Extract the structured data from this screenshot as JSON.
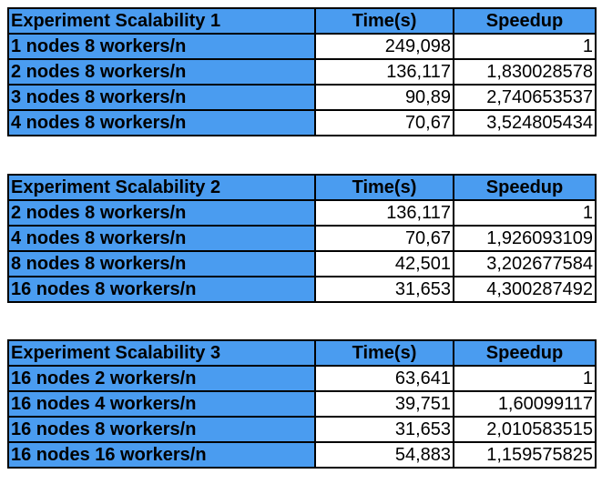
{
  "tables": [
    {
      "title": "Experiment Scalability 1",
      "col_time": "Time(s)",
      "col_speedup": "Speedup",
      "rows": [
        {
          "label": "1 nodes 8 workers/n",
          "time": "249,098",
          "speedup": "1"
        },
        {
          "label": "2 nodes 8 workers/n",
          "time": "136,117",
          "speedup": "1,830028578"
        },
        {
          "label": "3 nodes 8 workers/n",
          "time": "90,89",
          "speedup": "2,740653537"
        },
        {
          "label": "4 nodes 8 workers/n",
          "time": "70,67",
          "speedup": "3,524805434"
        }
      ]
    },
    {
      "title": "Experiment Scalability 2",
      "col_time": "Time(s)",
      "col_speedup": "Speedup",
      "rows": [
        {
          "label": "2 nodes 8 workers/n",
          "time": "136,117",
          "speedup": "1"
        },
        {
          "label": "4 nodes 8 workers/n",
          "time": "70,67",
          "speedup": "1,926093109"
        },
        {
          "label": "8 nodes 8 workers/n",
          "time": "42,501",
          "speedup": "3,202677584"
        },
        {
          "label": "16 nodes 8 workers/n",
          "time": "31,653",
          "speedup": "4,300287492"
        }
      ]
    },
    {
      "title": "Experiment Scalability 3",
      "col_time": "Time(s)",
      "col_speedup": "Speedup",
      "rows": [
        {
          "label": "16 nodes 2 workers/n",
          "time": "63,641",
          "speedup": "1"
        },
        {
          "label": "16 nodes 4 workers/n",
          "time": "39,751",
          "speedup": "1,60099117"
        },
        {
          "label": "16 nodes 8 workers/n",
          "time": "31,653",
          "speedup": "2,010583515"
        },
        {
          "label": "16 nodes 16 workers/n",
          "time": "54,883",
          "speedup": "1,159575825"
        }
      ]
    }
  ],
  "colors": {
    "header_fill": "#4a9cf0",
    "cell_fill": "#ffffff",
    "border": "#000000"
  }
}
